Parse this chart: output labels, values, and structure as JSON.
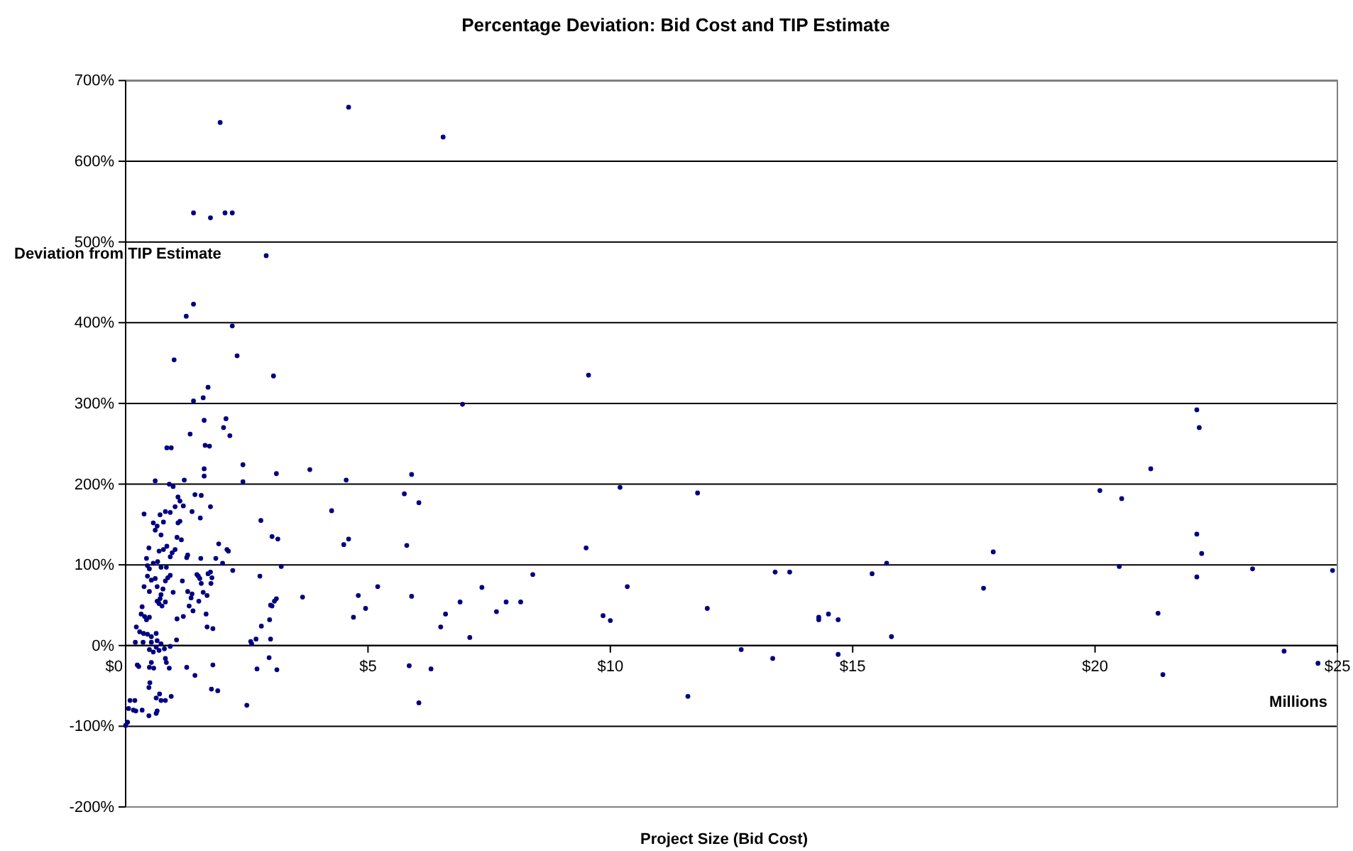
{
  "chart_data": {
    "type": "scatter",
    "title": "Percentage Deviation: Bid Cost and TIP Estimate",
    "xlabel": "Project Size (Bid Cost)",
    "ylabel": "Deviation from TIP Estimate",
    "annotations": [
      "Millions"
    ],
    "xlim": [
      0,
      25
    ],
    "xticks": [
      {
        "value": 0,
        "label": "$0"
      },
      {
        "value": 5,
        "label": "$5"
      },
      {
        "value": 10,
        "label": "$10"
      },
      {
        "value": 15,
        "label": "$15"
      },
      {
        "value": 20,
        "label": "$20"
      },
      {
        "value": 25,
        "label": "$25"
      }
    ],
    "ylim": [
      -200,
      700
    ],
    "yticks": [
      {
        "value": -200,
        "label": "-200%"
      },
      {
        "value": -100,
        "label": "-100%"
      },
      {
        "value": 0,
        "label": "0%"
      },
      {
        "value": 100,
        "label": "100%"
      },
      {
        "value": 200,
        "label": "200%"
      },
      {
        "value": 300,
        "label": "300%"
      },
      {
        "value": 400,
        "label": "400%"
      },
      {
        "value": 500,
        "label": "500%"
      },
      {
        "value": 600,
        "label": "600%"
      },
      {
        "value": 700,
        "label": "700%"
      }
    ],
    "grid": "y",
    "marker": "circle",
    "series": [
      {
        "color": "#000080",
        "x": [
          11.8,
          12.0,
          11.6,
          12.7,
          13.4,
          13.7,
          13.35,
          14.3,
          14.3,
          14.5,
          14.7,
          14.7,
          15.4,
          15.7,
          15.8,
          17.7,
          17.9,
          20.1,
          20.55,
          20.5,
          21.15,
          21.3,
          21.4,
          22.1,
          22.15,
          22.1,
          22.2,
          22.1,
          23.25,
          23.9,
          24.6,
          24.9,
          4.6,
          6.55,
          9.55,
          6.95,
          3.8,
          4.55,
          5.9,
          5.75,
          6.05,
          4.25,
          4.5,
          4.6,
          5.8,
          9.5,
          10.2,
          3.65,
          5.2,
          4.8,
          4.95,
          4.7,
          5.9,
          6.5,
          6.6,
          6.9,
          7.1,
          7.35,
          7.65,
          7.85,
          8.15,
          8.4,
          9.85,
          10.0,
          10.35,
          5.85,
          6.3,
          6.05,
          1.95,
          1.4,
          1.75,
          2.05,
          2.2,
          2.9,
          1.4,
          1.25,
          2.2,
          1.0,
          2.3,
          3.05,
          1.7,
          1.6,
          1.4,
          1.62,
          2.07,
          2.02,
          2.15,
          1.33,
          0.85,
          0.94,
          1.64,
          1.73,
          2.42,
          2.42,
          1.62,
          1.62,
          3.11,
          0.61,
          0.9,
          0.98,
          1.21,
          1.43,
          1.56,
          1.75,
          1.08,
          1.12,
          1.02,
          1.19,
          1.37,
          0.38,
          0.71,
          0.82,
          0.92,
          0.57,
          0.65,
          0.61,
          0.78,
          0.73,
          1.08,
          1.12,
          1.54,
          2.79,
          1.06,
          1.15,
          3.02,
          3.14,
          0.48,
          0.69,
          0.78,
          0.85,
          0.96,
          1.02,
          1.26,
          1.28,
          1.55,
          1.92,
          2.12,
          2.09,
          1.86,
          0.43,
          0.45,
          0.49,
          0.57,
          0.66,
          0.73,
          0.84,
          0.92,
          2.0,
          1.5,
          1.47,
          1.53,
          1.56,
          1.76,
          1.7,
          1.75,
          1.78,
          1.17,
          2.21,
          3.21,
          2.77,
          0.45,
          0.53,
          0.61,
          0.38,
          0.49,
          0.65,
          0.77,
          0.73,
          0.82,
          0.87,
          0.92,
          0.98,
          1.28,
          1.37,
          1.6,
          1.68,
          1.51,
          1.39,
          1.66,
          0.65,
          0.71,
          0.75,
          0.82,
          0.69,
          0.34,
          0.32,
          0.39,
          0.43,
          0.49,
          0.22,
          0.29,
          0.37,
          0.45,
          0.53,
          0.63,
          0.2,
          0.36,
          0.53,
          0.65,
          0.73,
          1.05,
          0.92,
          0.49,
          0.57,
          0.63,
          0.69,
          0.8,
          0.53,
          0.49,
          0.58,
          0.82,
          0.84,
          0.9,
          0.24,
          0.27,
          1.06,
          1.19,
          1.68,
          1.35,
          1.31,
          1.8,
          2.6,
          2.69,
          2.58,
          2.99,
          2.8,
          2.97,
          3.02,
          3.07,
          3.11,
          2.99,
          2.96,
          3.12,
          2.71,
          1.26,
          1.43,
          1.8,
          0.5,
          0.48,
          0.7,
          0.63,
          0.73,
          0.82,
          0.94,
          0.09,
          0.19,
          0.06,
          0.16,
          0.21,
          0.34,
          0.48,
          0.63,
          0.65,
          0.04,
          0.0,
          1.77,
          1.9,
          2.5
        ],
        "values": [
          189,
          46,
          -63,
          -5,
          91,
          91,
          -16,
          35,
          32,
          39,
          32,
          -11,
          89,
          102,
          11,
          71,
          116,
          192,
          182,
          98,
          219,
          40,
          -36,
          292,
          270,
          138,
          114,
          85,
          95,
          -7,
          -22,
          93,
          667,
          630,
          335,
          299,
          218,
          205,
          212,
          188,
          177,
          167,
          125,
          132,
          124,
          121,
          196,
          60,
          73,
          62,
          46,
          35,
          61,
          23,
          39,
          54,
          10,
          72,
          42,
          54,
          54,
          88,
          37,
          31,
          73,
          -25,
          -29,
          -71,
          648,
          536,
          530,
          536,
          536,
          483,
          423,
          408,
          396,
          354,
          359,
          334,
          320,
          307,
          303,
          279,
          281,
          270,
          260,
          262,
          245,
          245,
          248,
          247,
          224,
          203,
          219,
          210,
          213,
          204,
          200,
          197,
          205,
          187,
          186,
          172,
          184,
          179,
          172,
          173,
          166,
          163,
          162,
          166,
          165,
          152,
          148,
          143,
          153,
          137,
          152,
          154,
          158,
          155,
          134,
          131,
          135,
          132,
          121,
          117,
          119,
          123,
          115,
          119,
          109,
          112,
          108,
          126,
          117,
          119,
          108,
          108,
          99,
          95,
          102,
          104,
          97,
          97,
          110,
          102,
          86,
          88,
          83,
          77,
          77,
          89,
          91,
          84,
          80,
          93,
          98,
          86,
          86,
          81,
          83,
          73,
          67,
          73,
          70,
          63,
          80,
          84,
          87,
          66,
          67,
          64,
          66,
          62,
          55,
          43,
          39,
          55,
          58,
          49,
          54,
          52,
          48,
          39,
          36,
          32,
          35,
          23,
          17,
          15,
          14,
          11,
          15,
          4,
          4,
          4,
          6,
          2,
          7,
          -1,
          -5,
          -8,
          -2,
          -6,
          -4,
          -21,
          -27,
          -28,
          -16,
          -21,
          -28,
          -24,
          -26,
          33,
          36,
          23,
          59,
          49,
          21,
          2,
          8,
          5,
          8,
          24,
          32,
          49,
          55,
          58,
          50,
          -15,
          -30,
          -29,
          -27,
          -37,
          -24,
          -46,
          -52,
          -60,
          -65,
          -68,
          -68,
          -63,
          -68,
          -68,
          -78,
          -80,
          -81,
          -80,
          -87,
          -84,
          -81,
          -95,
          -99,
          -54,
          -56,
          -74
        ]
      }
    ]
  }
}
